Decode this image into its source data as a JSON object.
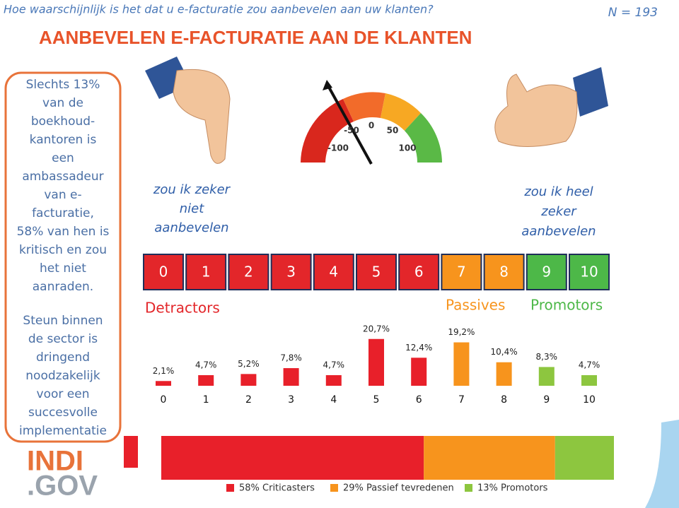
{
  "header": {
    "question": "Hoe waarschijnlijk is het dat u e-facturatie zou aanbevelen aan uw klanten?",
    "n": "N = 193",
    "title": "AANBEVELEN E-FACTURATIE AAN DE KLANTEN"
  },
  "sidebar": {
    "paragraphs": [
      {
        "lines": [
          "Slechts 13%",
          "van de",
          "boekhoud-",
          "kantoren is",
          "een",
          "ambassadeur",
          "van e-",
          "facturatie,",
          "58% van hen is",
          "kritisch en zou",
          "het niet",
          "aanraden."
        ]
      },
      {
        "lines": [
          "Steun binnen",
          "de sector is",
          "dringend",
          "noodzakelijk",
          "voor een",
          "succesvolle",
          "implementatie"
        ]
      }
    ]
  },
  "gauge": {
    "labels": [
      "-100",
      "-50",
      "0",
      "50",
      "100"
    ]
  },
  "scale": {
    "left_label": [
      "zou ik zeker",
      "niet",
      "aanbevelen"
    ],
    "right_label": [
      "zou ik heel",
      "zeker",
      "aanbevelen"
    ]
  },
  "groups": [
    {
      "name": "Detractors",
      "color": "#e3262a"
    },
    {
      "name": "Passives",
      "color": "#f7941d"
    },
    {
      "name": "Promotors",
      "color": "#4db848"
    }
  ],
  "chart_data": {
    "type": "bar",
    "categories": [
      "0",
      "1",
      "2",
      "3",
      "4",
      "5",
      "6",
      "7",
      "8",
      "9",
      "10"
    ],
    "values": [
      2.1,
      4.7,
      5.2,
      7.8,
      4.7,
      20.7,
      12.4,
      19.2,
      10.4,
      8.3,
      4.7
    ],
    "value_labels": [
      "2,1%",
      "4,7%",
      "5,2%",
      "7,8%",
      "4,7%",
      "20,7%",
      "12,4%",
      "19,2%",
      "10,4%",
      "8,3%",
      "4,7%"
    ],
    "colors": [
      "#e8202a",
      "#e8202a",
      "#e8202a",
      "#e8202a",
      "#e8202a",
      "#e8202a",
      "#e8202a",
      "#f7941d",
      "#f7941d",
      "#8dc63f",
      "#8dc63f"
    ],
    "box_colors": [
      "#e3262a",
      "#e3262a",
      "#e3262a",
      "#e3262a",
      "#e3262a",
      "#e3262a",
      "#e3262a",
      "#f7941d",
      "#f7941d",
      "#4db848",
      "#4db848"
    ]
  },
  "summary": {
    "segments": [
      {
        "name": "58% Criticasters",
        "value": 58,
        "color": "#e8202a"
      },
      {
        "name": "29% Passief tevredenen",
        "value": 29,
        "color": "#f7941d"
      },
      {
        "name": "13% Promotors",
        "value": 13,
        "color": "#8dc63f"
      }
    ]
  },
  "logo": {
    "top": "INDI",
    "bottom": ".GOV"
  }
}
